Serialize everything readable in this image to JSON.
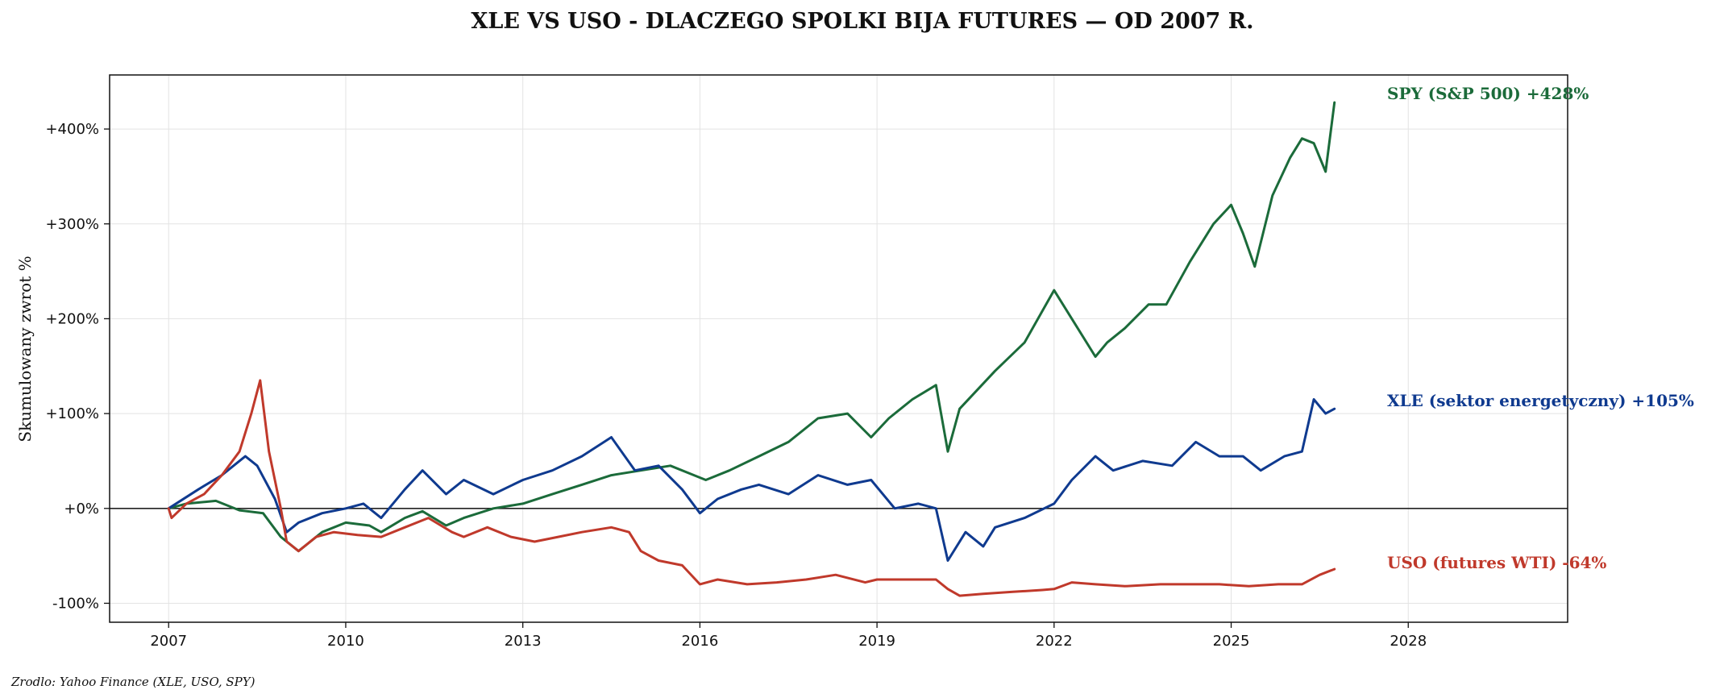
{
  "chart_data": {
    "type": "line",
    "title": "XLE VS USO - DLACZEGO SPOLKI BIJA FUTURES — OD 2007 R.",
    "ylabel": "Skumulowany zwrot %",
    "xlabel": "",
    "xlim": [
      2006.0,
      2030.7
    ],
    "ylim": [
      -120,
      457
    ],
    "x_ticks": [
      2007,
      2010,
      2013,
      2016,
      2019,
      2022,
      2025,
      2028
    ],
    "x_tick_labels": [
      "2007",
      "2010",
      "2013",
      "2016",
      "2019",
      "2022",
      "2025",
      "2028"
    ],
    "y_ticks": [
      -100,
      0,
      100,
      200,
      300,
      400
    ],
    "y_tick_labels": [
      "-100%",
      "+0%",
      "+100%",
      "+200%",
      "+300%",
      "+400%"
    ],
    "grid": true,
    "legend": "none",
    "source": "Zrodlo: Yahoo Finance (XLE, USO, SPY)",
    "series": [
      {
        "name": "SPY (S&P 500)",
        "end_label": "SPY (S&P 500)  +428%",
        "color": "#1b6b3a",
        "x": [
          2007.0,
          2007.3,
          2007.8,
          2008.2,
          2008.6,
          2008.9,
          2009.2,
          2009.6,
          2010.0,
          2010.4,
          2010.6,
          2011.0,
          2011.3,
          2011.7,
          2012.0,
          2012.5,
          2013.0,
          2013.5,
          2014.0,
          2014.5,
          2015.0,
          2015.5,
          2015.9,
          2016.1,
          2016.5,
          2017.0,
          2017.5,
          2018.0,
          2018.5,
          2018.9,
          2019.2,
          2019.6,
          2020.0,
          2020.2,
          2020.4,
          2020.7,
          2021.0,
          2021.5,
          2022.0,
          2022.3,
          2022.7,
          2022.9,
          2023.2,
          2023.6,
          2023.9,
          2024.3,
          2024.7,
          2025.0,
          2025.2,
          2025.4,
          2025.7,
          2026.0,
          2026.2,
          2026.4,
          2026.6,
          2026.75
        ],
        "values": [
          0,
          5,
          8,
          -2,
          -5,
          -30,
          -45,
          -25,
          -15,
          -18,
          -25,
          -10,
          -3,
          -18,
          -10,
          0,
          5,
          15,
          25,
          35,
          40,
          45,
          35,
          30,
          40,
          55,
          70,
          95,
          100,
          75,
          95,
          115,
          130,
          60,
          105,
          125,
          145,
          175,
          230,
          200,
          160,
          175,
          190,
          215,
          215,
          260,
          300,
          320,
          290,
          255,
          330,
          370,
          390,
          385,
          355,
          428
        ]
      },
      {
        "name": "XLE (sektor energetyczny)",
        "end_label": "XLE (sektor energetyczny)  +105%",
        "color": "#0f3a8f",
        "x": [
          2007.0,
          2007.5,
          2007.9,
          2008.3,
          2008.5,
          2008.8,
          2009.0,
          2009.2,
          2009.6,
          2010.0,
          2010.3,
          2010.6,
          2011.0,
          2011.3,
          2011.7,
          2012.0,
          2012.5,
          2013.0,
          2013.5,
          2014.0,
          2014.5,
          2014.9,
          2015.3,
          2015.7,
          2016.0,
          2016.3,
          2016.7,
          2017.0,
          2017.5,
          2018.0,
          2018.5,
          2018.9,
          2019.3,
          2019.7,
          2020.0,
          2020.2,
          2020.5,
          2020.8,
          2021.0,
          2021.5,
          2022.0,
          2022.3,
          2022.7,
          2023.0,
          2023.5,
          2024.0,
          2024.4,
          2024.8,
          2025.2,
          2025.5,
          2025.9,
          2026.2,
          2026.4,
          2026.6,
          2026.75
        ],
        "values": [
          0,
          20,
          35,
          55,
          45,
          10,
          -25,
          -15,
          -5,
          0,
          5,
          -10,
          20,
          40,
          15,
          30,
          15,
          30,
          40,
          55,
          75,
          40,
          45,
          20,
          -5,
          10,
          20,
          25,
          15,
          35,
          25,
          30,
          0,
          5,
          0,
          -55,
          -25,
          -40,
          -20,
          -10,
          5,
          30,
          55,
          40,
          50,
          45,
          70,
          55,
          55,
          40,
          55,
          60,
          115,
          100,
          105
        ]
      },
      {
        "name": "USO (futures WTI)",
        "end_label": "USO (futures WTI)  -64%",
        "color": "#c0392b",
        "x": [
          2007.0,
          2007.05,
          2007.3,
          2007.6,
          2007.9,
          2008.2,
          2008.4,
          2008.55,
          2008.7,
          2008.9,
          2009.0,
          2009.2,
          2009.5,
          2009.8,
          2010.2,
          2010.6,
          2011.0,
          2011.4,
          2011.8,
          2012.0,
          2012.4,
          2012.8,
          2013.2,
          2013.6,
          2014.0,
          2014.5,
          2014.8,
          2015.0,
          2015.3,
          2015.7,
          2016.0,
          2016.3,
          2016.8,
          2017.3,
          2017.8,
          2018.3,
          2018.8,
          2019.0,
          2019.5,
          2020.0,
          2020.2,
          2020.4,
          2020.8,
          2021.3,
          2021.8,
          2022.0,
          2022.3,
          2022.7,
          2023.2,
          2023.8,
          2024.3,
          2024.8,
          2025.3,
          2025.8,
          2026.2,
          2026.5,
          2026.75
        ],
        "values": [
          0,
          -10,
          5,
          15,
          35,
          60,
          100,
          135,
          60,
          0,
          -35,
          -45,
          -30,
          -25,
          -28,
          -30,
          -20,
          -10,
          -25,
          -30,
          -20,
          -30,
          -35,
          -30,
          -25,
          -20,
          -25,
          -45,
          -55,
          -60,
          -80,
          -75,
          -80,
          -78,
          -75,
          -70,
          -78,
          -75,
          -75,
          -75,
          -85,
          -92,
          -90,
          -88,
          -86,
          -85,
          -78,
          -80,
          -82,
          -80,
          -80,
          -80,
          -82,
          -80,
          -80,
          -70,
          -64
        ]
      }
    ]
  }
}
